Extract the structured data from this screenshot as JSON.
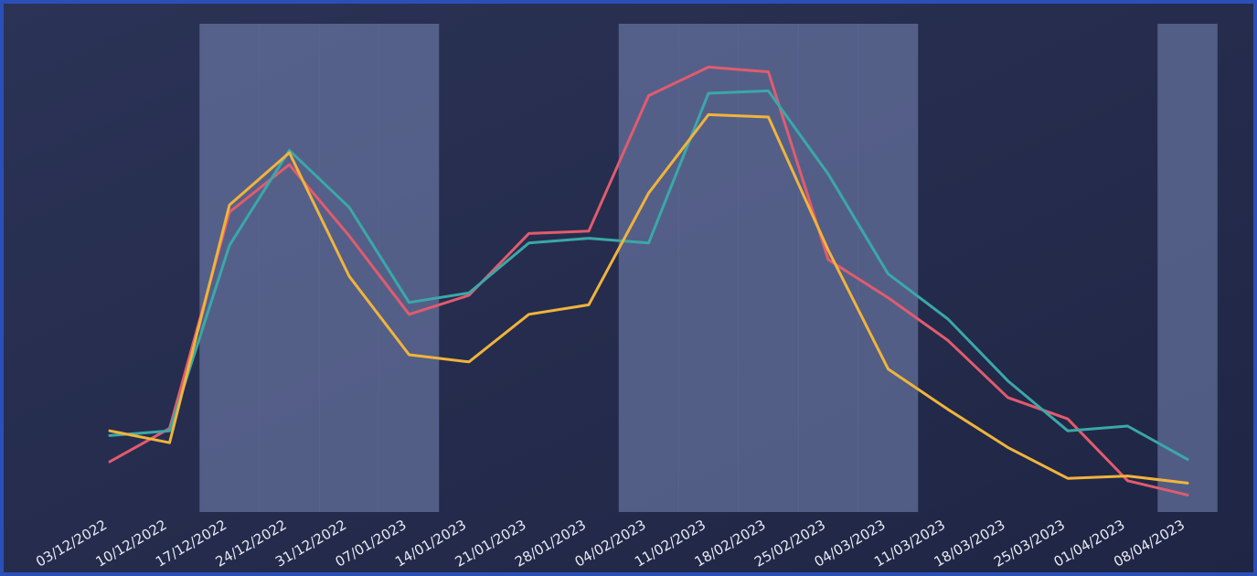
{
  "colors": {
    "background_start": "#2b3356",
    "background_end": "#1f2544",
    "band": "#7a88b8",
    "border": "#2a50b8",
    "tick_text": "#e8eaf2"
  },
  "chart_data": {
    "type": "line",
    "title": "",
    "xlabel": "",
    "ylabel": "",
    "x": [
      "03/12/2022",
      "10/12/2022",
      "17/12/2022",
      "24/12/2022",
      "31/12/2022",
      "07/01/2023",
      "14/01/2023",
      "21/01/2023",
      "28/01/2023",
      "04/02/2023",
      "11/02/2023",
      "18/02/2023",
      "25/02/2023",
      "04/03/2023",
      "11/03/2023",
      "18/03/2023",
      "25/03/2023",
      "01/04/2023",
      "08/04/2023"
    ],
    "ylim": [
      0,
      100
    ],
    "y_axis_visible": false,
    "grid": false,
    "legend": "none",
    "highlight_bands": [
      {
        "from": "17/12/2022",
        "to": "07/01/2023"
      },
      {
        "from": "04/02/2023",
        "to": "04/03/2023"
      },
      {
        "from": "08/04/2023",
        "to": "08/04/2023"
      }
    ],
    "series": [
      {
        "color": "#e05c6e",
        "values": [
          12.5,
          19.5,
          65,
          75,
          60,
          43.5,
          47.5,
          60.5,
          61,
          89.5,
          95.5,
          94.5,
          55,
          47,
          38,
          26,
          21.5,
          8.5,
          5.5
        ]
      },
      {
        "color": "#3aa8a8",
        "values": [
          18,
          19,
          58,
          78,
          66,
          46,
          48,
          58.5,
          59.5,
          58.5,
          90,
          90.5,
          73,
          52,
          42.5,
          29.5,
          19,
          20,
          13
        ]
      },
      {
        "color": "#f0b43c",
        "values": [
          19,
          16.5,
          66.5,
          77.5,
          51.5,
          35,
          33.5,
          43.5,
          45.5,
          69,
          85.5,
          85,
          57,
          32,
          23.5,
          15.5,
          9,
          9.5,
          8
        ]
      }
    ]
  }
}
